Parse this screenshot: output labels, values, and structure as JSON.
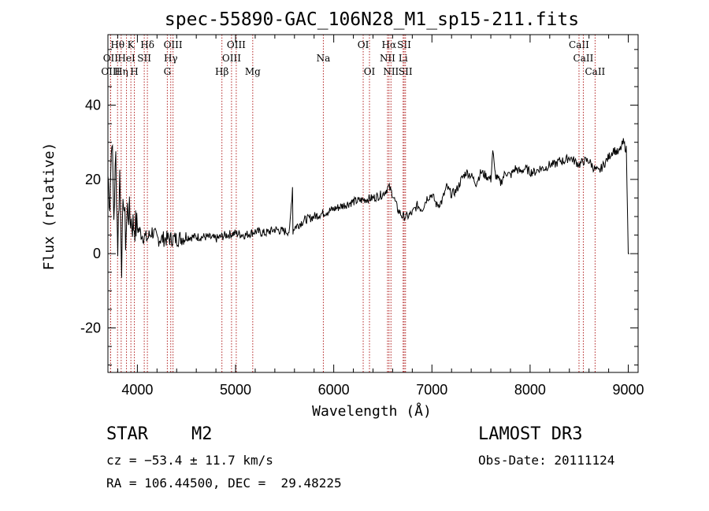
{
  "chart_data": {
    "type": "line",
    "title": "spec-55890-GAC_106N28_M1_sp15-211.fits",
    "xlabel": "Wavelength (Å)",
    "ylabel": "Flux (relative)",
    "xlim": [
      3700,
      9100
    ],
    "ylim": [
      -32,
      59
    ],
    "xticks": [
      4000,
      5000,
      6000,
      7000,
      8000,
      9000
    ],
    "yticks": [
      -20,
      0,
      20,
      40
    ],
    "series": [
      {
        "name": "flux",
        "x": [
          3700,
          3720,
          3740,
          3760,
          3780,
          3800,
          3820,
          3840,
          3860,
          3880,
          3900,
          3950,
          4000,
          4050,
          4100,
          4150,
          4200,
          4300,
          4400,
          4500,
          4600,
          4700,
          4800,
          4900,
          5000,
          5100,
          5200,
          5300,
          5400,
          5500,
          5550,
          5580,
          5585,
          5590,
          5600,
          5700,
          5800,
          5900,
          6000,
          6100,
          6200,
          6300,
          6400,
          6500,
          6560,
          6600,
          6650,
          6700,
          6750,
          6800,
          6850,
          6900,
          6950,
          7000,
          7050,
          7100,
          7150,
          7200,
          7250,
          7300,
          7350,
          7400,
          7450,
          7500,
          7550,
          7600,
          7620,
          7640,
          7650,
          7700,
          7750,
          7800,
          7850,
          7900,
          7950,
          8000,
          8050,
          8100,
          8150,
          8200,
          8250,
          8300,
          8350,
          8400,
          8450,
          8500,
          8550,
          8600,
          8650,
          8700,
          8750,
          8800,
          8850,
          8900,
          8950,
          8980,
          9000,
          9010
        ],
        "y": [
          21,
          14,
          33,
          10,
          26,
          2,
          22,
          -2,
          16,
          4,
          12,
          8,
          7,
          5,
          4,
          6,
          4,
          4,
          4,
          4.5,
          4.5,
          4.5,
          4,
          5,
          5.5,
          5,
          6,
          5.5,
          6.5,
          6,
          6,
          18,
          6,
          6.5,
          7,
          9,
          10,
          11,
          12,
          13,
          14,
          14.5,
          15,
          16,
          18,
          16,
          12,
          10,
          10,
          11,
          13,
          12,
          15,
          16,
          13,
          14,
          18,
          16,
          17,
          20,
          22,
          21,
          19,
          22,
          21,
          20,
          28,
          22,
          21,
          19,
          22,
          21,
          23,
          22,
          23,
          22,
          22,
          23,
          23,
          24,
          24,
          25,
          25,
          26,
          25,
          24,
          25,
          25,
          23,
          22,
          24,
          26,
          28,
          27,
          30,
          28,
          0,
          0
        ]
      }
    ],
    "spectral_lines": [
      {
        "label": "OII",
        "wl": 3727,
        "row": 2
      },
      {
        "label": "Hθ",
        "wl": 3798,
        "row": 1
      },
      {
        "label": "OIII",
        "wl": 3727,
        "row": 3
      },
      {
        "label": "Hη",
        "wl": 3835,
        "row": 3
      },
      {
        "label": "HeI",
        "wl": 3889,
        "row": 2
      },
      {
        "label": "K",
        "wl": 3934,
        "row": 1
      },
      {
        "label": "H",
        "wl": 3969,
        "row": 3
      },
      {
        "label": "SII",
        "wl": 4070,
        "row": 2
      },
      {
        "label": "Hδ",
        "wl": 4102,
        "row": 1
      },
      {
        "label": "OIII",
        "wl": 4363,
        "row": 1
      },
      {
        "label": "Hγ",
        "wl": 4340,
        "row": 2
      },
      {
        "label": "G",
        "wl": 4305,
        "row": 3
      },
      {
        "label": "Hβ",
        "wl": 4861,
        "row": 3
      },
      {
        "label": "OIII",
        "wl": 4959,
        "row": 2
      },
      {
        "label": "OIII",
        "wl": 5007,
        "row": 1
      },
      {
        "label": "Mg",
        "wl": 5175,
        "row": 3
      },
      {
        "label": "Na",
        "wl": 5894,
        "row": 2
      },
      {
        "label": "OI",
        "wl": 6300,
        "row": 1
      },
      {
        "label": "OI",
        "wl": 6364,
        "row": 3
      },
      {
        "label": "Hα",
        "wl": 6563,
        "row": 1
      },
      {
        "label": "NII",
        "wl": 6548,
        "row": 2
      },
      {
        "label": "NII",
        "wl": 6583,
        "row": 3
      },
      {
        "label": "SII",
        "wl": 6717,
        "row": 1
      },
      {
        "label": "Li",
        "wl": 6707,
        "row": 2
      },
      {
        "label": "SII",
        "wl": 6731,
        "row": 3
      },
      {
        "label": "CaII",
        "wl": 8498,
        "row": 1
      },
      {
        "label": "CaII",
        "wl": 8542,
        "row": 2
      },
      {
        "label": "CaII",
        "wl": 8662,
        "row": 3
      }
    ],
    "line_color": "#b22222"
  },
  "info": {
    "class": "STAR",
    "subclass": "M2",
    "survey": "LAMOST DR3",
    "cz": "cz = −53.4 ± 11.7 km/s",
    "obs_date": "Obs-Date: 20111124",
    "coords": "RA = 106.44500, DEC =  29.48225"
  }
}
